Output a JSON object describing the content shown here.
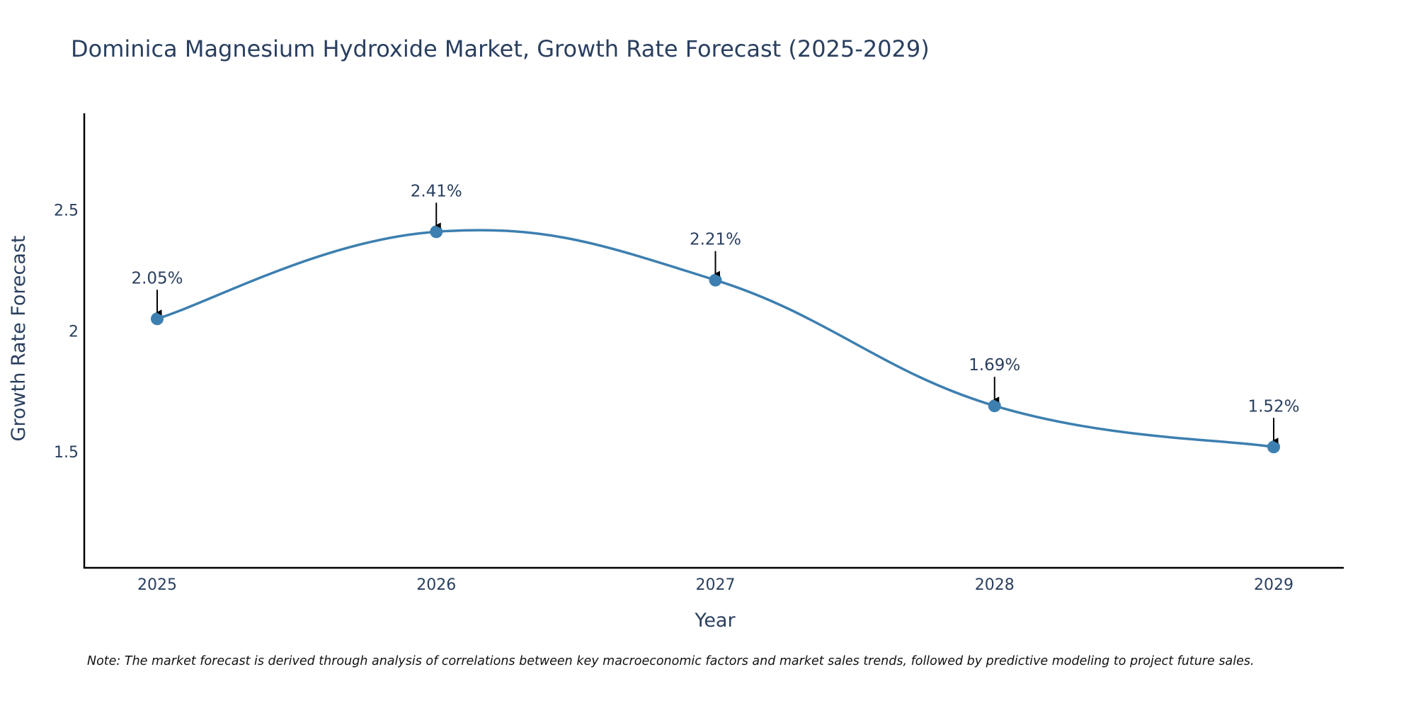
{
  "chart_data": {
    "type": "line",
    "title": "Dominica Magnesium Hydroxide Market, Growth Rate Forecast (2025-2029)",
    "xlabel": "Year",
    "ylabel": "Growth Rate Forecast",
    "categories": [
      "2025",
      "2026",
      "2027",
      "2028",
      "2029"
    ],
    "series": [
      {
        "name": "Growth Rate Forecast",
        "values": [
          2.05,
          2.41,
          2.21,
          1.69,
          1.52
        ]
      }
    ],
    "annotations": [
      "2.05%",
      "2.41%",
      "2.21%",
      "1.69%",
      "1.52%"
    ],
    "y_ticks": [
      {
        "value": 1.5,
        "label": "1.5"
      },
      {
        "value": 2,
        "label": "2"
      },
      {
        "value": 2.5,
        "label": "2.5"
      }
    ],
    "ylim": [
      1.02,
      2.9
    ],
    "grid": false,
    "line_shape": "spline",
    "note": "Note: The market forecast is derived through analysis of correlations between key macroeconomic factors and market sales trends, followed by predictive modeling to project future sales."
  },
  "colors": {
    "line": "#3d7fb0",
    "marker": "#3d7fb0",
    "text": "#2a3f5f",
    "axis": "#000000",
    "arrow": "#000000"
  }
}
